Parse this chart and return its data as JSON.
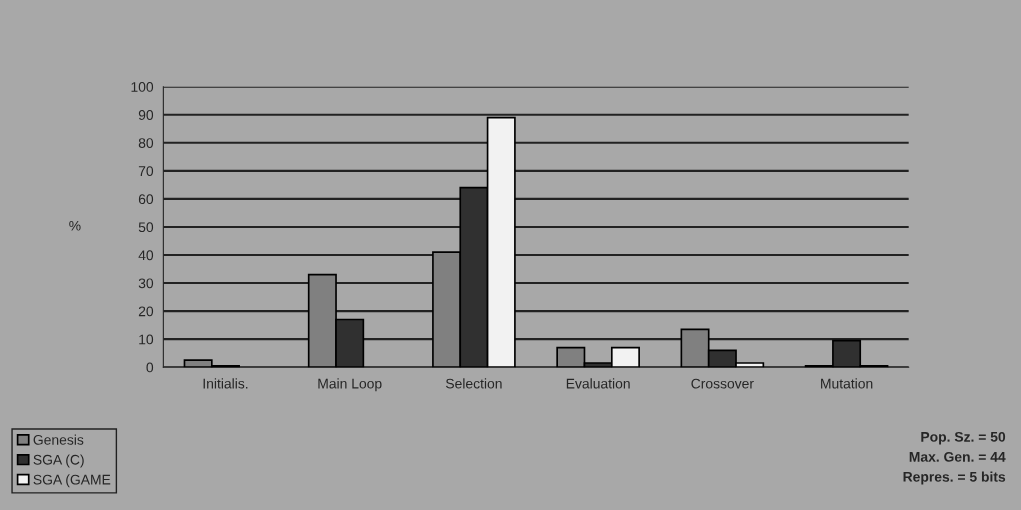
{
  "chart_data": {
    "type": "bar",
    "ylabel": "%",
    "categories": [
      "Initialis.",
      "Main Loop",
      "Selection",
      "Evaluation",
      "Crossover",
      "Mutation"
    ],
    "series": [
      {
        "name": "Genesis",
        "color": "#808080",
        "values": [
          2.5,
          33,
          41,
          7,
          13.5,
          0.5
        ]
      },
      {
        "name": "SGA (C)",
        "color": "#303030",
        "values": [
          0.5,
          17,
          64,
          1.5,
          6,
          9.5
        ]
      },
      {
        "name": "SGA (GAME",
        "color": "#f2f2f2",
        "values": [
          null,
          null,
          89,
          7,
          1.5,
          0.5
        ]
      }
    ],
    "ylim": [
      0,
      100
    ],
    "yticks": [
      0,
      10,
      20,
      30,
      40,
      50,
      60,
      70,
      80,
      90,
      100
    ],
    "grid": "y",
    "legend": "bottom left",
    "annotations": [
      "Pop. Sz. = 50\nMax. Gen. = 44\nRepres. = 5 bits"
    ]
  }
}
